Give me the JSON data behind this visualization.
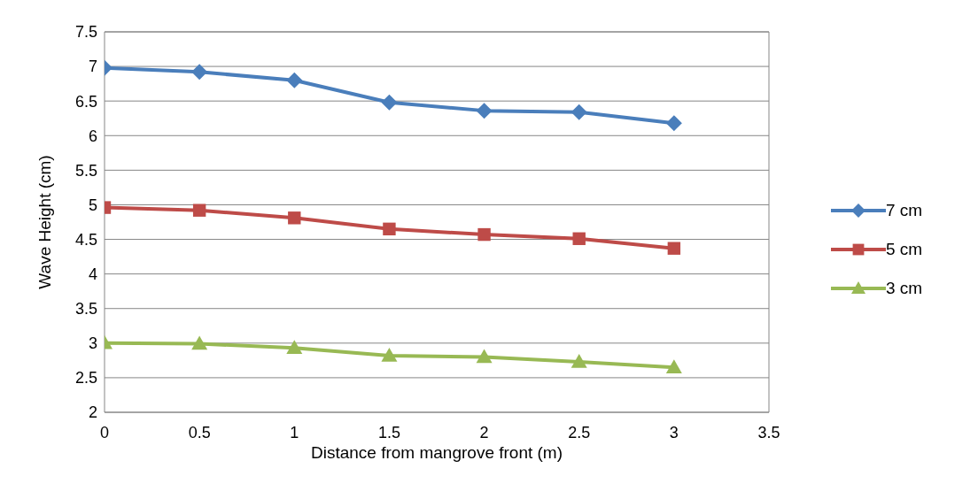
{
  "chart_data": {
    "type": "line",
    "xlabel": "Distance from mangrove front (m)",
    "ylabel": "Wave Height (cm)",
    "x": [
      0,
      0.5,
      1,
      1.5,
      2,
      2.5,
      3
    ],
    "series": [
      {
        "name": "7 cm",
        "color": "#4a7ebb",
        "marker": "diamond",
        "values": [
          6.98,
          6.92,
          6.8,
          6.48,
          6.36,
          6.34,
          6.18
        ]
      },
      {
        "name": "5 cm",
        "color": "#be4b48",
        "marker": "square",
        "values": [
          4.96,
          4.92,
          4.81,
          4.65,
          4.57,
          4.51,
          4.37
        ]
      },
      {
        "name": "3 cm",
        "color": "#98b954",
        "marker": "triangle",
        "values": [
          3.0,
          2.99,
          2.93,
          2.82,
          2.8,
          2.73,
          2.65
        ]
      }
    ],
    "xlim": [
      0,
      3.5
    ],
    "xticks": [
      0,
      0.5,
      1,
      1.5,
      2,
      2.5,
      3,
      3.5
    ],
    "ylim": [
      2,
      7.5
    ],
    "yticks": [
      2,
      2.5,
      3,
      3.5,
      4,
      4.5,
      5,
      5.5,
      6,
      6.5,
      7,
      7.5
    ],
    "grid": "y",
    "legend": "right",
    "line_style": "solid"
  }
}
